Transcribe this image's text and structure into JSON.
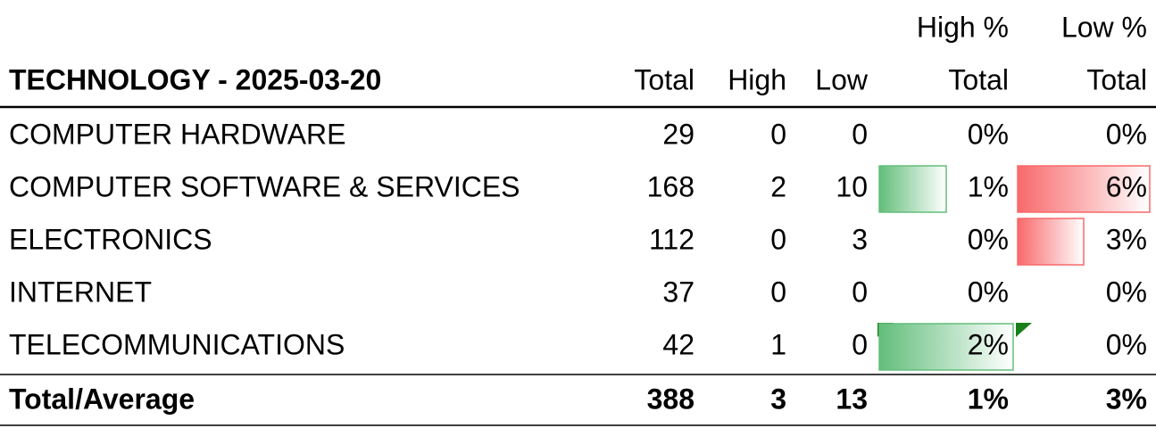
{
  "header": {
    "title": "TECHNOLOGY - 2025-03-20",
    "columns": [
      [
        "Total"
      ],
      [
        "High"
      ],
      [
        "Low"
      ],
      [
        "High %",
        "Total"
      ],
      [
        "Low %",
        "Total"
      ]
    ]
  },
  "table": {
    "rows": [
      {
        "name": "COMPUTER HARDWARE",
        "total": "29",
        "high": "0",
        "low": "0",
        "high_pct": {
          "value": 0,
          "label": "0%"
        },
        "low_pct": {
          "value": 0,
          "label": "0%"
        }
      },
      {
        "name": "COMPUTER SOFTWARE & SERVICES",
        "total": "168",
        "high": "2",
        "low": "10",
        "high_pct": {
          "value": 1,
          "label": "1%"
        },
        "low_pct": {
          "value": 6,
          "label": "6%"
        }
      },
      {
        "name": "ELECTRONICS",
        "total": "112",
        "high": "0",
        "low": "3",
        "high_pct": {
          "value": 0,
          "label": "0%"
        },
        "low_pct": {
          "value": 3,
          "label": "3%"
        }
      },
      {
        "name": "INTERNET",
        "total": "37",
        "high": "0",
        "low": "0",
        "high_pct": {
          "value": 0,
          "label": "0%"
        },
        "low_pct": {
          "value": 0,
          "label": "0%"
        }
      },
      {
        "name": "TELECOMMUNICATIONS",
        "total": "42",
        "high": "1",
        "low": "0",
        "high_pct": {
          "value": 2,
          "label": "2%"
        },
        "low_pct": {
          "value": 0,
          "label": "0%"
        }
      }
    ],
    "footer": {
      "name": "Total/Average",
      "total": "388",
      "high": "3",
      "low": "13",
      "high_pct": {
        "value": 1,
        "label": "1%"
      },
      "low_pct": {
        "value": 3,
        "label": "3%"
      }
    }
  }
}
